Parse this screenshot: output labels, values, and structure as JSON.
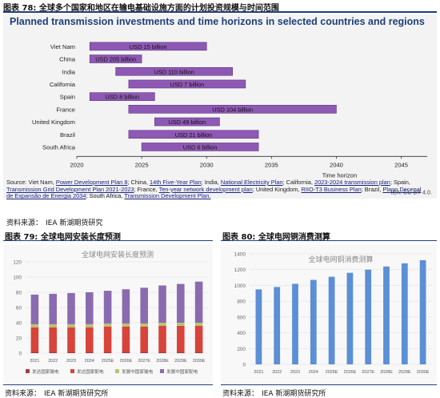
{
  "figure78": {
    "caption": "图表 78: 全球多个国家和地区在输电基础设施方面的计划投资规模与时间范围",
    "source_prefix": "资料来源：",
    "source_org": "IEA 新湖期货研究"
  },
  "figure79": {
    "caption": "图表 79: 全球电网安装长度预测",
    "source_prefix": "资料来源：",
    "source_org": "IEA 新湖期货研究所"
  },
  "figure80": {
    "caption": "图表 80: 全球电网铜消费测算",
    "source_prefix": "资料来源：",
    "source_org": "IEA 新湖期货研究所"
  },
  "source_note": {
    "prefix": "Source: Viet Nam, ",
    "items": [
      {
        "pre": "",
        "link": "Power Development Plan 8",
        "post": "; China, "
      },
      {
        "pre": "",
        "link": "14th Five-Year Plan",
        "post": "; India, "
      },
      {
        "pre": "",
        "link": "National Electricity Plan",
        "post": "; California, "
      },
      {
        "pre": "",
        "link": "2023-2024 transmission plan",
        "post": "; Spain, "
      },
      {
        "pre": "",
        "link": "Transmission Grid Development Plan 2021-2023",
        "post": "; France, "
      },
      {
        "pre": "",
        "link": "Ten-year network development plan",
        "post": "; United Kingdom, "
      },
      {
        "pre": "",
        "link": "RIIO-T3 Business Plan",
        "post": "; Brazil, "
      },
      {
        "pre": "",
        "link": "Plano Decenal de Expansão de Energia 2034",
        "post": "; South Africa, "
      },
      {
        "pre": "",
        "link": "Transmission Development Plan.",
        "post": ""
      }
    ]
  },
  "colors": {
    "rule": "#1f3f7a",
    "gantt_bar": "#8e59b4",
    "gantt_title": "#1f3f7a",
    "stack_bottom": "#d8433a",
    "stack_middle": "#b9c46e",
    "stack_top": "#8a6bb0",
    "copper_bar": "#5b8fd6"
  },
  "chart_data": [
    {
      "type": "bar",
      "orientation": "horizontal-range",
      "title": "Planned transmission investments and time horizons in selected countries and regions",
      "xlabel": "Time horizon",
      "xlim": [
        2020,
        2047
      ],
      "xticks": [
        2020,
        2025,
        2030,
        2035,
        2040,
        2045
      ],
      "grid": false,
      "credit": "IEA. CC BY 4.0.",
      "categories": [
        "Viet Nam",
        "China",
        "India",
        "California",
        "Spain",
        "France",
        "United Kingdom",
        "Brazil",
        "South Africa"
      ],
      "ranges": [
        [
          2021,
          2030
        ],
        [
          2021,
          2025
        ],
        [
          2023,
          2032
        ],
        [
          2024,
          2033
        ],
        [
          2021,
          2026
        ],
        [
          2024,
          2040
        ],
        [
          2026,
          2031
        ],
        [
          2024,
          2034
        ],
        [
          2025,
          2034
        ]
      ],
      "labels": [
        "USD 15 billion",
        "USD 205 billion",
        "USD 110 billion",
        "USD 7 billion",
        "USD 8 billion",
        "USD 104 billion",
        "USD 49 billion",
        "USD 21 billion",
        "USD 6 billion"
      ]
    },
    {
      "type": "bar",
      "stacked": true,
      "title": "全球电网安装长度预测",
      "categories": [
        "2021",
        "2022",
        "2023",
        "2024",
        "2025E",
        "2026E",
        "2027E",
        "2028E",
        "2029E",
        "2030E"
      ],
      "ylim": [
        0,
        120
      ],
      "yticks": [
        0,
        20,
        40,
        60,
        80,
        100,
        120
      ],
      "legend": "bottom",
      "series": [
        {
          "name": "发达国家输电",
          "values": [
            2,
            2,
            2,
            2,
            2,
            2,
            2,
            2,
            2,
            2
          ]
        },
        {
          "name": "发达国家配电",
          "values": [
            32,
            32,
            32,
            32,
            33,
            33,
            33,
            34,
            34,
            34
          ]
        },
        {
          "name": "发展中国家输电",
          "values": [
            4,
            4,
            4,
            4,
            4,
            4,
            4,
            4,
            4,
            4
          ]
        },
        {
          "name": "发展中国家配电",
          "values": [
            39,
            40,
            41,
            42,
            43,
            45,
            47,
            49,
            51,
            54
          ]
        }
      ]
    },
    {
      "type": "bar",
      "title": "全球电网铜消费测算",
      "categories": [
        "2021",
        "2022",
        "2023",
        "2024",
        "2025E",
        "2026E",
        "2027E",
        "2028E",
        "2029E",
        "2030E"
      ],
      "ylim": [
        0,
        1400
      ],
      "yticks": [
        0,
        200,
        400,
        600,
        800,
        1000,
        1200,
        1400
      ],
      "series": [
        {
          "name": "",
          "values": [
            950,
            980,
            1020,
            1070,
            1110,
            1160,
            1200,
            1240,
            1280,
            1320
          ]
        }
      ]
    }
  ]
}
